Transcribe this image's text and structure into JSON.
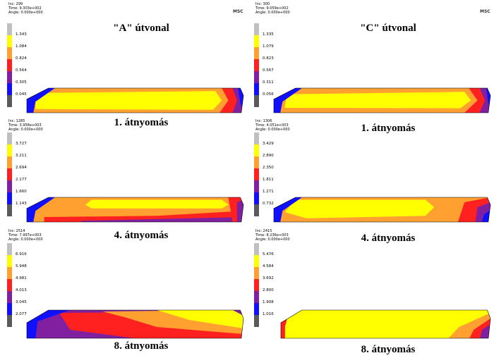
{
  "panels": [
    {
      "header": {
        "inc": "Inc:  299",
        "time": "Time: 9.303e+002",
        "angle": "Angle: 0.000e+000"
      },
      "logo": "MSC",
      "title": "\"A\" útvonal",
      "legend": [
        "1.343",
        "1.084",
        "0.824",
        "0.564",
        "0.305",
        "0.045"
      ],
      "caption": "1. átnyomás"
    },
    {
      "header": {
        "inc": "Inc:  300",
        "time": "Time: 9.059e+002",
        "angle": "Angle: 0.000e+000"
      },
      "logo": "MSC",
      "title": "\"C\" útvonal",
      "legend": [
        "1.335",
        "1.079",
        "0.823",
        "0.567",
        "0.311",
        "0.056"
      ],
      "caption": "1. átnyomás"
    },
    {
      "header": {
        "inc": "Inc:  1285",
        "time": "Time: 3.958e+003",
        "angle": "Angle: 0.000e+000"
      },
      "legend": [
        "3.727",
        "3.211",
        "2.694",
        "2.177",
        "1.660",
        "1.143"
      ],
      "caption": "4. átnyomás"
    },
    {
      "header": {
        "inc": "Inc:  1306",
        "time": "Time: 4.051e+003",
        "angle": "Angle: 0.000e+000"
      },
      "legend": [
        "3.429",
        "2.890",
        "2.350",
        "1.811",
        "1.271",
        "0.732"
      ],
      "caption": "4. átnyomás"
    },
    {
      "header": {
        "inc": "Inc:  2514",
        "time": "Time: 7.997e+003",
        "angle": "Angle: 0.000e+000"
      },
      "legend": [
        "6.916",
        "5.948",
        "4.981",
        "4.013",
        "3.045",
        "2.077"
      ],
      "caption": "8. átnyomás"
    },
    {
      "header": {
        "inc": "Inc:  2415",
        "time": "Time: 8.236e+003",
        "angle": "Angle: 0.000e+000"
      },
      "legend": [
        "5.476",
        "4.584",
        "3.692",
        "2.800",
        "1.908",
        "1.016"
      ],
      "caption": "8. átnyomás"
    }
  ]
}
